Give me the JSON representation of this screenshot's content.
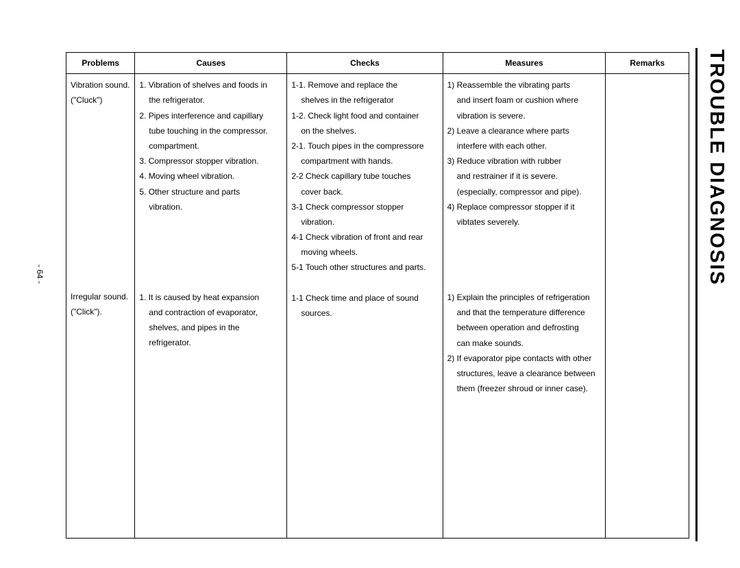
{
  "title": "TROUBLE DIAGNOSIS",
  "page_number": "- 64 -",
  "headers": {
    "c1": "Problems",
    "c2": "Causes",
    "c3": "Checks",
    "c4": "Measures",
    "c5": "Remarks"
  },
  "row1": {
    "problems": [
      "Vibration sound.",
      "(\"Cluck\")"
    ],
    "causes": [
      "1. Vibration of shelves and foods in",
      "    the refrigerator.",
      "2. Pipes interference and capillary",
      "    tube touching in the compressor.",
      "    compartment.",
      "3. Compressor stopper vibration.",
      "4. Moving wheel vibration.",
      "5. Other structure and parts",
      "    vibration."
    ],
    "checks": [
      "1-1. Remove and replace the",
      "       shelves in the refrigerator",
      "1-2. Check light food and container",
      "       on the shelves.",
      "2-1. Touch pipes in the compressore",
      "       compartment with hands.",
      "2-2 Check capillary tube touches",
      "       cover back.",
      "3-1 Check compressor stopper",
      "       vibration.",
      "4-1 Check vibration of front and rear",
      "       moving wheels.",
      "5-1 Touch other structures and parts."
    ],
    "measures": [
      "1) Reassemble the vibrating parts",
      "    and insert foam or cushion where",
      "    vibration is severe.",
      "2) Leave a clearance where parts",
      "    interfere with each other.",
      "3) Reduce vibration with rubber",
      "    and restrainer if it is severe.",
      "    (especially, compressor and pipe).",
      "4) Replace compressor stopper if it",
      "    vibtates severely."
    ]
  },
  "row2": {
    "problems": [
      "Irregular sound.",
      "(\"Click\")."
    ],
    "causes": [
      "1. It is caused by heat expansion",
      "    and contraction of evaporator,",
      "    shelves, and pipes in the",
      "    refrigerator."
    ],
    "checks": [
      "1-1 Check time and place of sound",
      "       sources."
    ],
    "measures": [
      "1) Explain the principles of refrigeration",
      "    and that the temperature difference",
      "    between operation and defrosting",
      "    can make sounds.",
      "2) If evaporator pipe contacts with other",
      "    structures, leave a clearance between",
      "    them (freezer shroud or inner case)."
    ]
  }
}
